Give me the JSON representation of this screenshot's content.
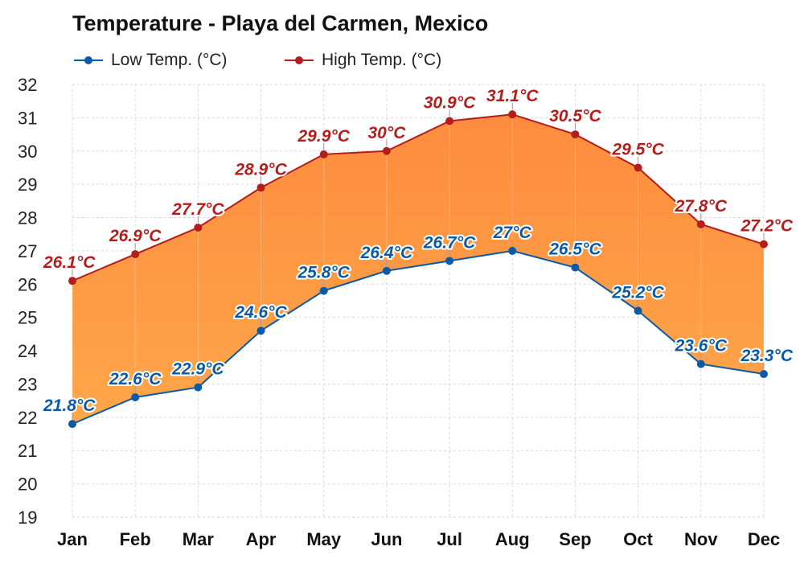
{
  "colors": {
    "low": "#0b5aa6",
    "high": "#b51d1d",
    "fill_top": "#fd8c3e",
    "fill_bottom": "#ffa64a",
    "grid": "#d9d9d9"
  },
  "legend": {
    "low_label": "Low Temp. (°C)",
    "high_label": "High Temp. (°C)"
  },
  "chart_data": {
    "type": "line",
    "title": "Temperature - Playa del Carmen, Mexico",
    "xlabel": "",
    "ylabel": "",
    "categories": [
      "Jan",
      "Feb",
      "Mar",
      "Apr",
      "May",
      "Jun",
      "Jul",
      "Aug",
      "Sep",
      "Oct",
      "Nov",
      "Dec"
    ],
    "series": [
      {
        "name": "Low Temp. (°C)",
        "values": [
          21.8,
          22.6,
          22.9,
          24.6,
          25.8,
          26.4,
          26.7,
          27,
          26.5,
          25.2,
          23.6,
          23.3
        ],
        "labels": [
          "21.8°C",
          "22.6°C",
          "22.9°C",
          "24.6°C",
          "25.8°C",
          "26.4°C",
          "26.7°C",
          "27°C",
          "26.5°C",
          "25.2°C",
          "23.6°C",
          "23.3°C"
        ]
      },
      {
        "name": "High Temp. (°C)",
        "values": [
          26.1,
          26.9,
          27.7,
          28.9,
          29.9,
          30,
          30.9,
          31.1,
          30.5,
          29.5,
          27.8,
          27.2
        ],
        "labels": [
          "26.1°C",
          "26.9°C",
          "27.7°C",
          "28.9°C",
          "29.9°C",
          "30°C",
          "30.9°C",
          "31.1°C",
          "30.5°C",
          "29.5°C",
          "27.8°C",
          "27.2°C"
        ]
      }
    ],
    "area_between_series": true,
    "ylim": [
      19,
      32
    ],
    "yticks": [
      19,
      20,
      21,
      22,
      23,
      24,
      25,
      26,
      27,
      28,
      29,
      30,
      31,
      32
    ],
    "grid": true,
    "legend_position": "top-left"
  }
}
